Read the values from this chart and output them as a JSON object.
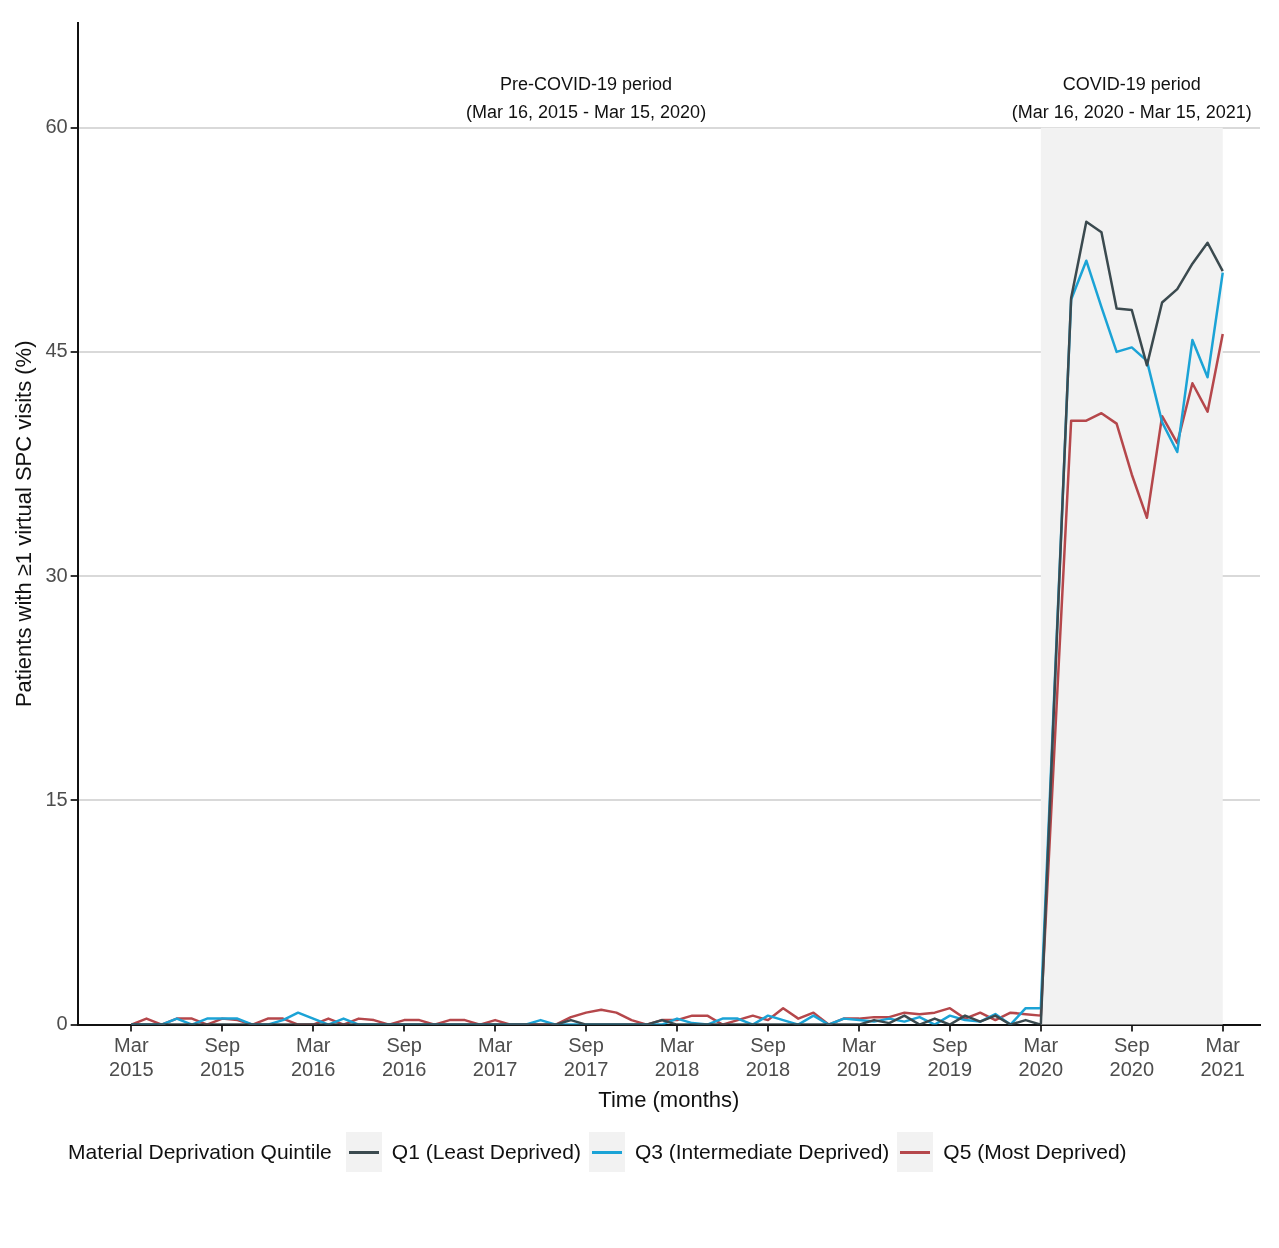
{
  "chart_data": {
    "type": "line",
    "xlabel": "Time (months)",
    "ylabel": "Patients with ≥1 virtual SPC visits (%)",
    "legend_title": "Material Deprivation Quintile",
    "legend": "bottom",
    "grid": "y",
    "marker": "none",
    "line_style": "solid",
    "x": [
      "2015-03",
      "2015-04",
      "2015-05",
      "2015-06",
      "2015-07",
      "2015-08",
      "2015-09",
      "2015-10",
      "2015-11",
      "2015-12",
      "2016-01",
      "2016-02",
      "2016-03",
      "2016-04",
      "2016-05",
      "2016-06",
      "2016-07",
      "2016-08",
      "2016-09",
      "2016-10",
      "2016-11",
      "2016-12",
      "2017-01",
      "2017-02",
      "2017-03",
      "2017-04",
      "2017-05",
      "2017-06",
      "2017-07",
      "2017-08",
      "2017-09",
      "2017-10",
      "2017-11",
      "2017-12",
      "2018-01",
      "2018-02",
      "2018-03",
      "2018-04",
      "2018-05",
      "2018-06",
      "2018-07",
      "2018-08",
      "2018-09",
      "2018-10",
      "2018-11",
      "2018-12",
      "2019-01",
      "2019-02",
      "2019-03",
      "2019-04",
      "2019-05",
      "2019-06",
      "2019-07",
      "2019-08",
      "2019-09",
      "2019-10",
      "2019-11",
      "2019-12",
      "2020-01",
      "2020-02",
      "2020-03",
      "2020-04",
      "2020-05",
      "2020-06",
      "2020-07",
      "2020-08",
      "2020-09",
      "2020-10",
      "2020-11",
      "2020-12",
      "2021-01",
      "2021-02",
      "2021-03"
    ],
    "xlim": [
      "2014-11-15",
      "2021-05-15"
    ],
    "xticks": [
      {
        "value": "2015-03",
        "label": "Mar 2015"
      },
      {
        "value": "2015-09",
        "label": "Sep 2015"
      },
      {
        "value": "2016-03",
        "label": "Mar 2016"
      },
      {
        "value": "2016-09",
        "label": "Sep 2016"
      },
      {
        "value": "2017-03",
        "label": "Mar 2017"
      },
      {
        "value": "2017-09",
        "label": "Sep 2017"
      },
      {
        "value": "2018-03",
        "label": "Mar 2018"
      },
      {
        "value": "2018-09",
        "label": "Sep 2018"
      },
      {
        "value": "2019-03",
        "label": "Mar 2019"
      },
      {
        "value": "2019-09",
        "label": "Sep 2019"
      },
      {
        "value": "2020-03",
        "label": "Mar 2020"
      },
      {
        "value": "2020-09",
        "label": "Sep 2020"
      },
      {
        "value": "2021-03",
        "label": "Mar 2021"
      }
    ],
    "ylim": [
      0,
      67
    ],
    "yticks": [
      0,
      15,
      30,
      45,
      60
    ],
    "bands": [
      {
        "axis": "x",
        "from": "2020-03",
        "to": "2021-03",
        "label": "COVID-19 period\n(Mar 16, 2020 - Mar 15, 2021)",
        "color": "#f2f2f2"
      }
    ],
    "annotations": [
      "Pre-COVID-19 period\n(Mar 16, 2015 - Mar 15, 2020)"
    ],
    "series": [
      {
        "name": "Q1 (Least Deprived)",
        "color": "#3b4a4f",
        "values": [
          0,
          0,
          0,
          0,
          0,
          0,
          0,
          0,
          0,
          0,
          0,
          0,
          0,
          0,
          0,
          0,
          0,
          0,
          0,
          0,
          0,
          0,
          0,
          0,
          0,
          0,
          0,
          0,
          0,
          0.3,
          0,
          0,
          0,
          0,
          0,
          0.3,
          0,
          0,
          0,
          0,
          0,
          0,
          0,
          0,
          0,
          0,
          0,
          0,
          0,
          0.3,
          0.1,
          0.6,
          0,
          0.4,
          0,
          0.6,
          0.2,
          0.6,
          0,
          0.3,
          0,
          24.5,
          48.6,
          53.7,
          53.0,
          47.9,
          47.8,
          44.1,
          48.3,
          49.2,
          50.9,
          52.3,
          50.4
        ]
      },
      {
        "name": "Q3 (Intermediate Deprived)",
        "color": "#1ba3d6",
        "values": [
          0,
          0,
          0,
          0.4,
          0,
          0.4,
          0.4,
          0.4,
          0,
          0,
          0.3,
          0.8,
          0.4,
          0,
          0.4,
          0,
          0,
          0,
          0,
          0,
          0,
          0,
          0,
          0,
          0,
          0,
          0,
          0.3,
          0,
          0,
          0,
          0,
          0,
          0,
          0,
          0,
          0.4,
          0.1,
          0,
          0.4,
          0.4,
          0,
          0.6,
          0.3,
          0,
          0.6,
          0,
          0.4,
          0.3,
          0.2,
          0.4,
          0.2,
          0.5,
          0,
          0.6,
          0.3,
          0.2,
          0.7,
          0,
          1.1,
          1.1,
          24.8,
          48.5,
          51.1,
          48.0,
          45.0,
          45.3,
          44.4,
          40.3,
          38.3,
          45.8,
          43.3,
          50.3
        ]
      },
      {
        "name": "Q5 (Most Deprived)",
        "color": "#b5474b",
        "values": [
          0,
          0.4,
          0,
          0.4,
          0.4,
          0,
          0.4,
          0.3,
          0,
          0.4,
          0.4,
          0,
          0,
          0.4,
          0,
          0.4,
          0.3,
          0,
          0.3,
          0.3,
          0,
          0.3,
          0.3,
          0,
          0.3,
          0,
          0,
          0,
          0,
          0.5,
          0.8,
          1.0,
          0.8,
          0.3,
          0,
          0.3,
          0.3,
          0.6,
          0.6,
          0,
          0.3,
          0.6,
          0.3,
          1.1,
          0.4,
          0.8,
          0,
          0.4,
          0.4,
          0.5,
          0.5,
          0.8,
          0.7,
          0.8,
          1.1,
          0.4,
          0.8,
          0.3,
          0.8,
          0.7,
          0.6,
          20.5,
          40.4,
          40.4,
          40.9,
          40.2,
          36.8,
          33.9,
          40.7,
          38.9,
          42.9,
          41.0,
          46.2
        ]
      }
    ]
  }
}
